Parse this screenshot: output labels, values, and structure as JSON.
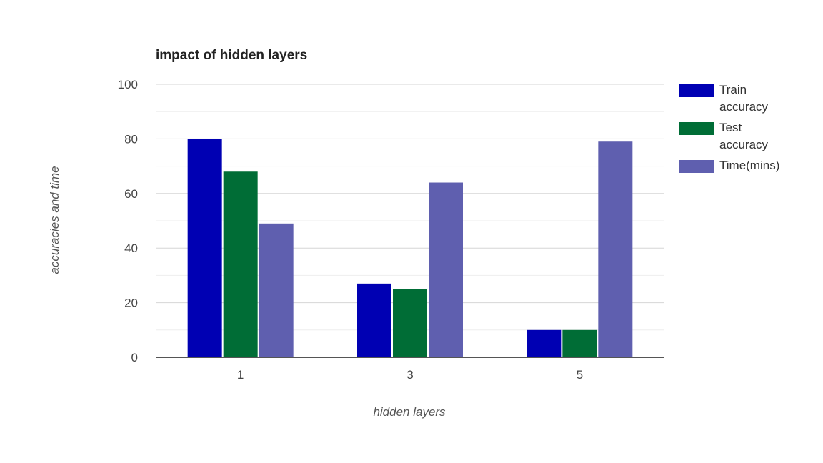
{
  "chart_data": {
    "type": "bar",
    "title": "impact of hidden layers",
    "xlabel": "hidden layers",
    "ylabel": "accuracies and time",
    "categories": [
      "1",
      "3",
      "5"
    ],
    "series": [
      {
        "name": "Train accuracy",
        "legend_lines": [
          "Train",
          "accuracy"
        ],
        "color": "#0000b3",
        "values": [
          80,
          27,
          10
        ]
      },
      {
        "name": "Test accuracy",
        "legend_lines": [
          "Test",
          "accuracy"
        ],
        "color": "#006d36",
        "values": [
          68,
          25,
          10
        ]
      },
      {
        "name": "Time(mins)",
        "legend_lines": [
          "Time(mins)"
        ],
        "color": "#5f5faf",
        "values": [
          49,
          64,
          79
        ]
      }
    ],
    "ylim": [
      0,
      100
    ],
    "yticks": [
      0,
      20,
      40,
      60,
      80,
      100
    ],
    "grid": true,
    "legend": "right"
  }
}
